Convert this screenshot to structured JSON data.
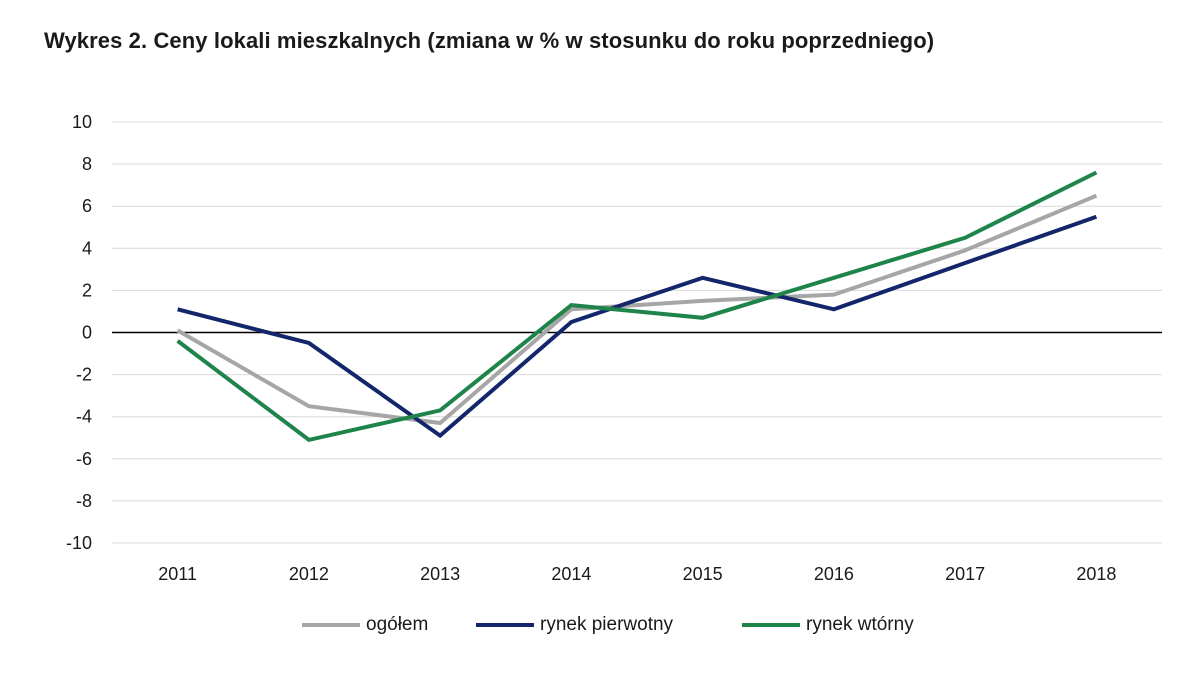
{
  "chart_data": {
    "type": "line",
    "title": "Wykres 2. Ceny lokali mieszkalnych (zmiana w % w stosunku do roku poprzedniego)",
    "categories": [
      "2011",
      "2012",
      "2013",
      "2014",
      "2015",
      "2016",
      "2017",
      "2018"
    ],
    "ylim": [
      -10,
      10
    ],
    "yticks": [
      10,
      8,
      6,
      4,
      2,
      0,
      -2,
      -4,
      -6,
      -8,
      -10
    ],
    "ytick_labels": [
      "10",
      "8",
      "6",
      "4",
      "2",
      "0",
      "-2",
      "-4",
      "-6",
      "-8",
      "-10"
    ],
    "grid": true,
    "legend_position": "bottom",
    "series": [
      {
        "name": "ogółem",
        "color": "#a6a6a6",
        "values": [
          0.1,
          -3.5,
          -4.3,
          1.1,
          1.5,
          1.8,
          3.9,
          6.5
        ]
      },
      {
        "name": "rynek pierwotny",
        "color": "#13256b",
        "values": [
          1.1,
          -0.5,
          -4.9,
          0.5,
          2.6,
          1.1,
          3.3,
          5.5
        ]
      },
      {
        "name": "rynek wtórny",
        "color": "#1e8449",
        "values": [
          -0.4,
          -5.1,
          -3.7,
          1.3,
          0.7,
          2.6,
          4.5,
          7.6
        ]
      }
    ]
  }
}
